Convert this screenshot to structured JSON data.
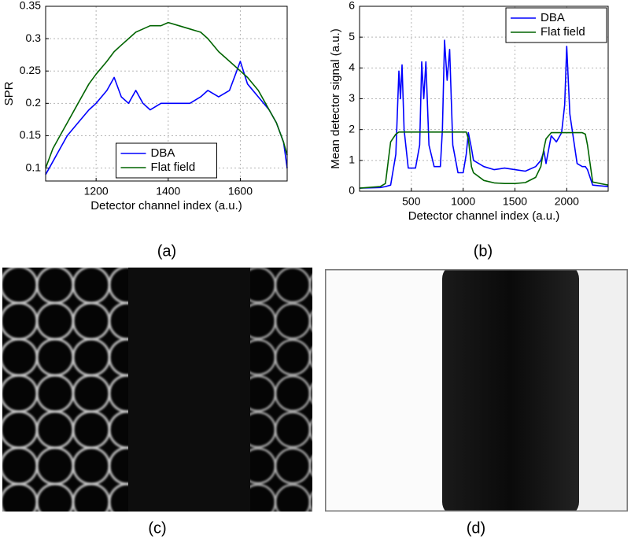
{
  "chart_data": [
    {
      "type": "line",
      "xlabel": "Detector channel index (a.u.)",
      "ylabel": "SPR",
      "x": [
        1060,
        1080,
        1100,
        1120,
        1150,
        1180,
        1200,
        1230,
        1250,
        1270,
        1290,
        1310,
        1330,
        1350,
        1380,
        1400,
        1430,
        1460,
        1490,
        1510,
        1540,
        1570,
        1590,
        1600,
        1620,
        1650,
        1680,
        1700,
        1720,
        1730
      ],
      "series": [
        {
          "name": "DBA",
          "color": "#0000ff",
          "values": [
            0.09,
            0.11,
            0.13,
            0.15,
            0.17,
            0.19,
            0.2,
            0.22,
            0.24,
            0.21,
            0.2,
            0.22,
            0.2,
            0.19,
            0.2,
            0.2,
            0.2,
            0.2,
            0.21,
            0.22,
            0.21,
            0.22,
            0.25,
            0.265,
            0.23,
            0.21,
            0.19,
            0.17,
            0.14,
            0.1
          ]
        },
        {
          "name": "Flat field",
          "color": "#006400",
          "values": [
            0.1,
            0.13,
            0.15,
            0.17,
            0.2,
            0.23,
            0.245,
            0.265,
            0.28,
            0.29,
            0.3,
            0.31,
            0.315,
            0.32,
            0.32,
            0.325,
            0.32,
            0.315,
            0.31,
            0.3,
            0.28,
            0.265,
            0.255,
            0.25,
            0.24,
            0.22,
            0.19,
            0.17,
            0.14,
            0.12
          ]
        }
      ],
      "xlim": [
        1060,
        1730
      ],
      "xticks": [
        1200,
        1400,
        1600
      ],
      "ylim": [
        0.08,
        0.35
      ],
      "yticks": [
        0.1,
        0.15,
        0.2,
        0.25,
        0.3,
        0.35
      ],
      "grid": true,
      "legend": "lower center",
      "caption": "(a)"
    },
    {
      "type": "line",
      "xlabel": "Detector channel index (a.u.)",
      "ylabel": "Mean detector signal (a.u.)",
      "x": [
        0,
        200,
        250,
        300,
        350,
        380,
        395,
        410,
        430,
        470,
        540,
        580,
        600,
        620,
        640,
        670,
        720,
        780,
        800,
        820,
        845,
        870,
        900,
        950,
        1000,
        1030,
        1050,
        1080,
        1100,
        1200,
        1300,
        1400,
        1500,
        1600,
        1700,
        1750,
        1780,
        1800,
        1850,
        1900,
        1950,
        1980,
        2000,
        2030,
        2100,
        2150,
        2180,
        2200,
        2250,
        2400
      ],
      "series": [
        {
          "name": "DBA",
          "color": "#0000ff",
          "values": [
            0.1,
            0.12,
            0.15,
            0.2,
            1.2,
            3.9,
            3.0,
            4.1,
            2.0,
            0.75,
            0.75,
            1.5,
            4.2,
            3.0,
            4.2,
            1.5,
            0.8,
            0.8,
            2.0,
            4.9,
            3.6,
            4.6,
            1.5,
            0.6,
            0.6,
            1.2,
            1.9,
            1.4,
            1.0,
            0.8,
            0.7,
            0.75,
            0.7,
            0.65,
            0.8,
            1.0,
            1.3,
            0.9,
            1.8,
            1.6,
            1.9,
            2.8,
            4.7,
            2.5,
            0.9,
            0.8,
            0.8,
            0.7,
            0.2,
            0.15
          ]
        },
        {
          "name": "Flat field",
          "color": "#006400",
          "values": [
            0.1,
            0.15,
            0.25,
            1.6,
            1.85,
            1.92,
            1.92,
            1.92,
            1.92,
            1.92,
            1.92,
            1.92,
            1.92,
            1.92,
            1.92,
            1.92,
            1.92,
            1.92,
            1.92,
            1.92,
            1.92,
            1.92,
            1.92,
            1.92,
            1.92,
            1.92,
            1.7,
            0.8,
            0.6,
            0.35,
            0.27,
            0.25,
            0.25,
            0.28,
            0.45,
            0.8,
            1.4,
            1.7,
            1.9,
            1.9,
            1.9,
            1.9,
            1.9,
            1.9,
            1.9,
            1.9,
            1.85,
            1.5,
            0.3,
            0.2
          ]
        }
      ],
      "xlim": [
        0,
        2400
      ],
      "xticks": [
        500,
        1000,
        1500,
        2000
      ],
      "ylim": [
        0,
        6
      ],
      "yticks": [
        0,
        1,
        2,
        3,
        4,
        5,
        6
      ],
      "grid": true,
      "legend": "upper right",
      "caption": "(b)"
    }
  ],
  "images": [
    {
      "caption": "(c)"
    },
    {
      "caption": "(d)"
    }
  ]
}
